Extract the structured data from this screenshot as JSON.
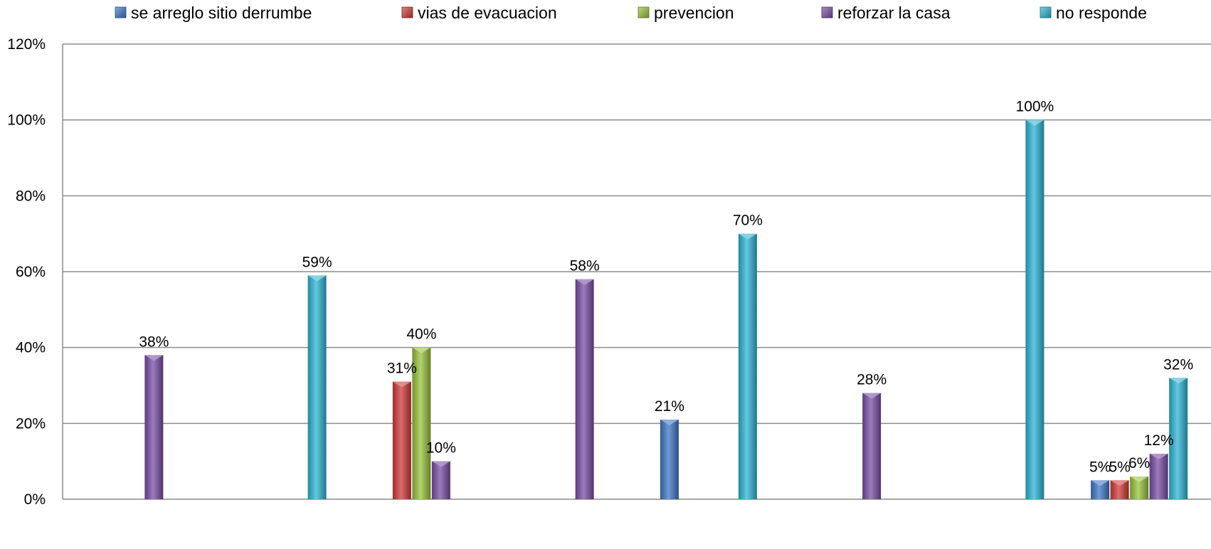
{
  "chart_data": {
    "type": "bar",
    "title": "",
    "xlabel": "",
    "ylabel": "",
    "ylim": [
      0,
      120
    ],
    "yticks": [
      "0%",
      "20%",
      "40%",
      "60%",
      "80%",
      "100%",
      "120%"
    ],
    "grid": true,
    "legend": "top",
    "categories": [
      "",
      "",
      "",
      "",
      "",
      "",
      "",
      ""
    ],
    "series": [
      {
        "name": "se arreglo sitio derrumbe",
        "color": "#3f78c8",
        "values": [
          null,
          null,
          null,
          null,
          21,
          null,
          null,
          5
        ]
      },
      {
        "name": "vias de evacuacion",
        "color": "#d23b3b",
        "values": [
          null,
          null,
          31,
          null,
          null,
          null,
          null,
          5
        ]
      },
      {
        "name": "prevencion",
        "color": "#98c43c",
        "values": [
          null,
          null,
          40,
          null,
          null,
          null,
          null,
          6
        ]
      },
      {
        "name": "reforzar la casa",
        "color": "#7b4fa6",
        "values": [
          38,
          null,
          10,
          58,
          null,
          28,
          null,
          12
        ]
      },
      {
        "name": "no responde",
        "color": "#2fb6d6",
        "values": [
          null,
          59,
          null,
          null,
          70,
          null,
          100,
          32
        ]
      }
    ],
    "data_labels": [
      [
        "",
        "",
        "",
        "",
        "21%",
        "",
        "",
        "5%"
      ],
      [
        "",
        "",
        "31%",
        "",
        "",
        "",
        "",
        "5%"
      ],
      [
        "",
        "",
        "40%",
        "",
        "",
        "",
        "",
        "6%"
      ],
      [
        "38%",
        "",
        "10%",
        "58%",
        "",
        "28%",
        "",
        "12%"
      ],
      [
        "",
        "59%",
        "",
        "",
        "70%",
        "",
        "100%",
        "32%"
      ]
    ]
  }
}
